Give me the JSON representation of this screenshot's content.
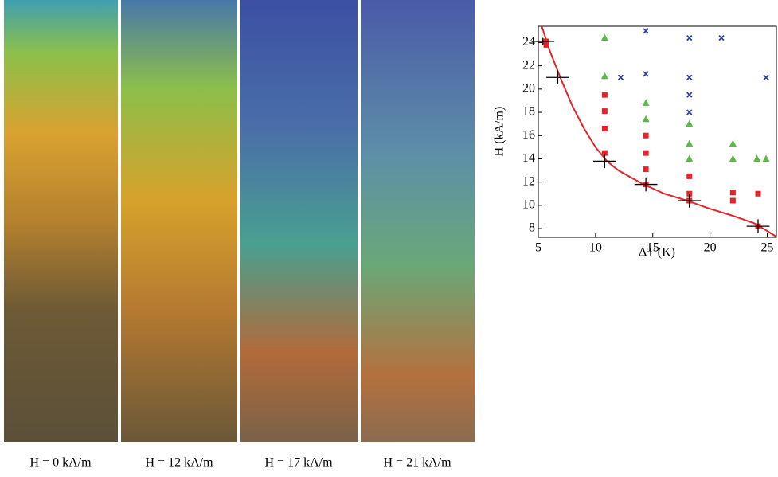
{
  "panels": [
    {
      "label": "H = 0 kA/m"
    },
    {
      "label": "H = 12 kA/m"
    },
    {
      "label": "H = 17 kA/m"
    },
    {
      "label": "H = 21 kA/m"
    }
  ],
  "chart_data": {
    "type": "scatter",
    "xlabel": "ΔT (K)",
    "ylabel": "H (kA/m)",
    "xlim": [
      5,
      25.8
    ],
    "ylim": [
      7.25,
      25.4
    ],
    "xticks": [
      5,
      10,
      15,
      20,
      25
    ],
    "yticks": [
      8,
      10,
      12,
      14,
      16,
      18,
      20,
      22,
      24
    ],
    "series": [
      {
        "type": "line",
        "color": "#e3242b",
        "x": [
          5.3,
          6,
          7,
          8,
          9,
          10,
          11,
          12,
          14,
          16,
          18,
          20,
          22,
          24,
          25.8
        ],
        "y": [
          25.4,
          23.3,
          20.8,
          18.5,
          16.6,
          15,
          13.8,
          13,
          11.9,
          11,
          10.4,
          9.7,
          9.1,
          8.4,
          7.3
        ]
      },
      {
        "type": "scatter",
        "marker": "square",
        "color": "#e3242b",
        "x": [
          5.7,
          5.7,
          10.8,
          10.8,
          10.8,
          10.8,
          14.4,
          14.4,
          14.4,
          14.4,
          18.2,
          18.2,
          18.2,
          22,
          22,
          24.2,
          24.2
        ],
        "y": [
          24.1,
          23.8,
          19.5,
          18.1,
          16.6,
          14.5,
          16.0,
          14.5,
          13.1,
          11.8,
          12.5,
          11.0,
          10.4,
          11.1,
          10.4,
          11.0,
          8.2
        ]
      },
      {
        "type": "scatter",
        "marker": "triangle",
        "color": "#5cb947",
        "x": [
          10.8,
          10.8,
          14.4,
          14.4,
          18.2,
          18.2,
          18.2,
          22,
          22,
          24.1,
          24.9
        ],
        "y": [
          24.4,
          21.1,
          18.8,
          17.4,
          17.0,
          15.3,
          14.0,
          15.3,
          14.0,
          14.0,
          14.0
        ]
      },
      {
        "type": "scatter",
        "marker": "x",
        "color": "#2b3e9c",
        "x": [
          12.2,
          14.4,
          14.4,
          18.2,
          18.2,
          18.2,
          18.2,
          21.0,
          24.9
        ],
        "y": [
          21.0,
          25.0,
          21.3,
          24.4,
          21.0,
          19.5,
          18.0,
          24.4,
          21.0
        ]
      },
      {
        "type": "errorbar",
        "color": "#000000",
        "x": [
          5.4,
          6.7,
          10.8,
          14.4,
          18.2,
          24.2
        ],
        "y": [
          24.1,
          21.0,
          13.8,
          11.8,
          10.4,
          8.2
        ],
        "xerr": [
          1.0,
          1.0,
          1.0,
          1.0,
          1.0,
          1.0
        ],
        "yerr": [
          0.3,
          0.6,
          0.6,
          0.6,
          0.6,
          0.6
        ]
      }
    ]
  }
}
